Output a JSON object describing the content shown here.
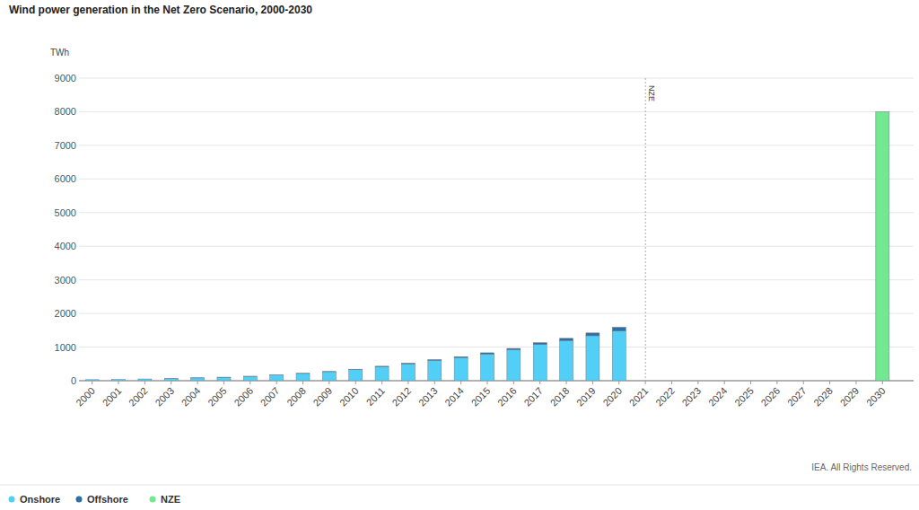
{
  "chart_data": {
    "type": "bar",
    "title": "Wind power generation in the Net Zero Scenario, 2000-2030",
    "y_label": "TWh",
    "credit": "IEA. All Rights Reserved.",
    "stacked": true,
    "grid": true,
    "legend": "bottom-left",
    "categories": [
      "2000",
      "2001",
      "2002",
      "2003",
      "2004",
      "2005",
      "2006",
      "2007",
      "2008",
      "2009",
      "2010",
      "2011",
      "2012",
      "2013",
      "2014",
      "2015",
      "2016",
      "2017",
      "2018",
      "2019",
      "2020",
      "2021",
      "2022",
      "2023",
      "2024",
      "2025",
      "2026",
      "2027",
      "2028",
      "2029",
      "2030"
    ],
    "series": [
      {
        "name": "Onshore",
        "color": "#52cff7",
        "values": [
          31,
          38,
          52,
          62,
          84,
          102,
          130,
          167,
          216,
          269,
          335,
          419,
          503,
          605,
          690,
          795,
          920,
          1077,
          1196,
          1338,
          1480,
          null,
          null,
          null,
          null,
          null,
          null,
          null,
          null,
          null,
          null
        ]
      },
      {
        "name": "Offshore",
        "color": "#2e6ea6",
        "values": [
          0,
          0,
          0,
          1,
          1,
          2,
          2,
          3,
          3,
          4,
          7,
          12,
          17,
          22,
          25,
          35,
          40,
          53,
          64,
          82,
          110,
          null,
          null,
          null,
          null,
          null,
          null,
          null,
          null,
          null,
          null
        ]
      },
      {
        "name": "NZE",
        "color": "#72e890",
        "values": [
          null,
          null,
          null,
          null,
          null,
          null,
          null,
          null,
          null,
          null,
          null,
          null,
          null,
          null,
          null,
          null,
          null,
          null,
          null,
          null,
          null,
          null,
          null,
          null,
          null,
          null,
          null,
          null,
          null,
          null,
          8000
        ]
      }
    ],
    "annotations": [
      {
        "text": "NZE",
        "x": "2021"
      }
    ],
    "ylim": [
      0,
      9000
    ],
    "yticks": [
      0,
      1000,
      2000,
      3000,
      4000,
      5000,
      6000,
      7000,
      8000,
      9000
    ]
  }
}
